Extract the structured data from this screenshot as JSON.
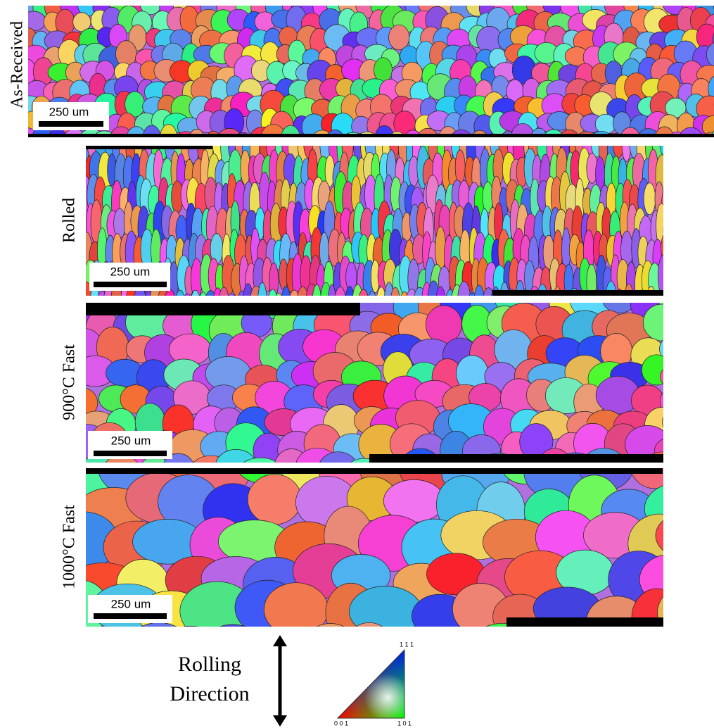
{
  "panels": [
    {
      "label": "As-Received",
      "scale_bar": "250 um"
    },
    {
      "label": "Rolled",
      "scale_bar": "250 um"
    },
    {
      "label": "900°C Fast",
      "scale_bar": "250 um"
    },
    {
      "label": "1000°C Fast",
      "scale_bar": "250 um"
    }
  ],
  "legend": {
    "rolling_direction": [
      "Rolling",
      "Direction"
    ],
    "ipf_corners": {
      "top": "1 1 1",
      "bottom_left": "0 0 1",
      "bottom_right": "1 0 1"
    }
  }
}
